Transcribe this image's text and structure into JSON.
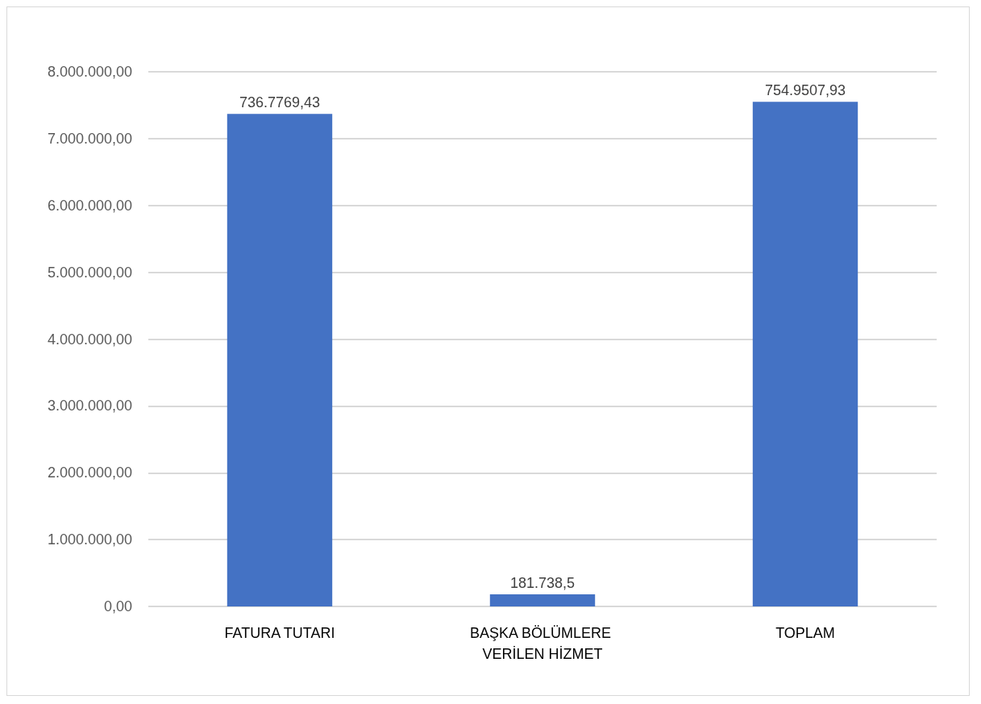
{
  "chart_data": {
    "type": "bar",
    "categories": [
      "FATURA TUTARI",
      "BAŞKA BÖLÜMLERE VERİLEN HİZMET",
      "TOPLAM"
    ],
    "values": [
      7370000,
      181738.5,
      7550000
    ],
    "value_labels": [
      "736.7769,43",
      "181.738,5",
      "754.9507,93"
    ],
    "color": "#4472c4",
    "ylim": [
      0,
      8000000
    ],
    "yticks": [
      {
        "value": 0,
        "label": "0,00"
      },
      {
        "value": 1000000,
        "label": "1.000.000,00"
      },
      {
        "value": 2000000,
        "label": "2.000.000,00"
      },
      {
        "value": 3000000,
        "label": "3.000.000,00"
      },
      {
        "value": 4000000,
        "label": "4.000.000,00"
      },
      {
        "value": 5000000,
        "label": "5.000.000,00"
      },
      {
        "value": 6000000,
        "label": "6.000.000,00"
      },
      {
        "value": 7000000,
        "label": "7.000.000,00"
      },
      {
        "value": 8000000,
        "label": "8.000.000,00"
      }
    ],
    "grid": "y"
  }
}
